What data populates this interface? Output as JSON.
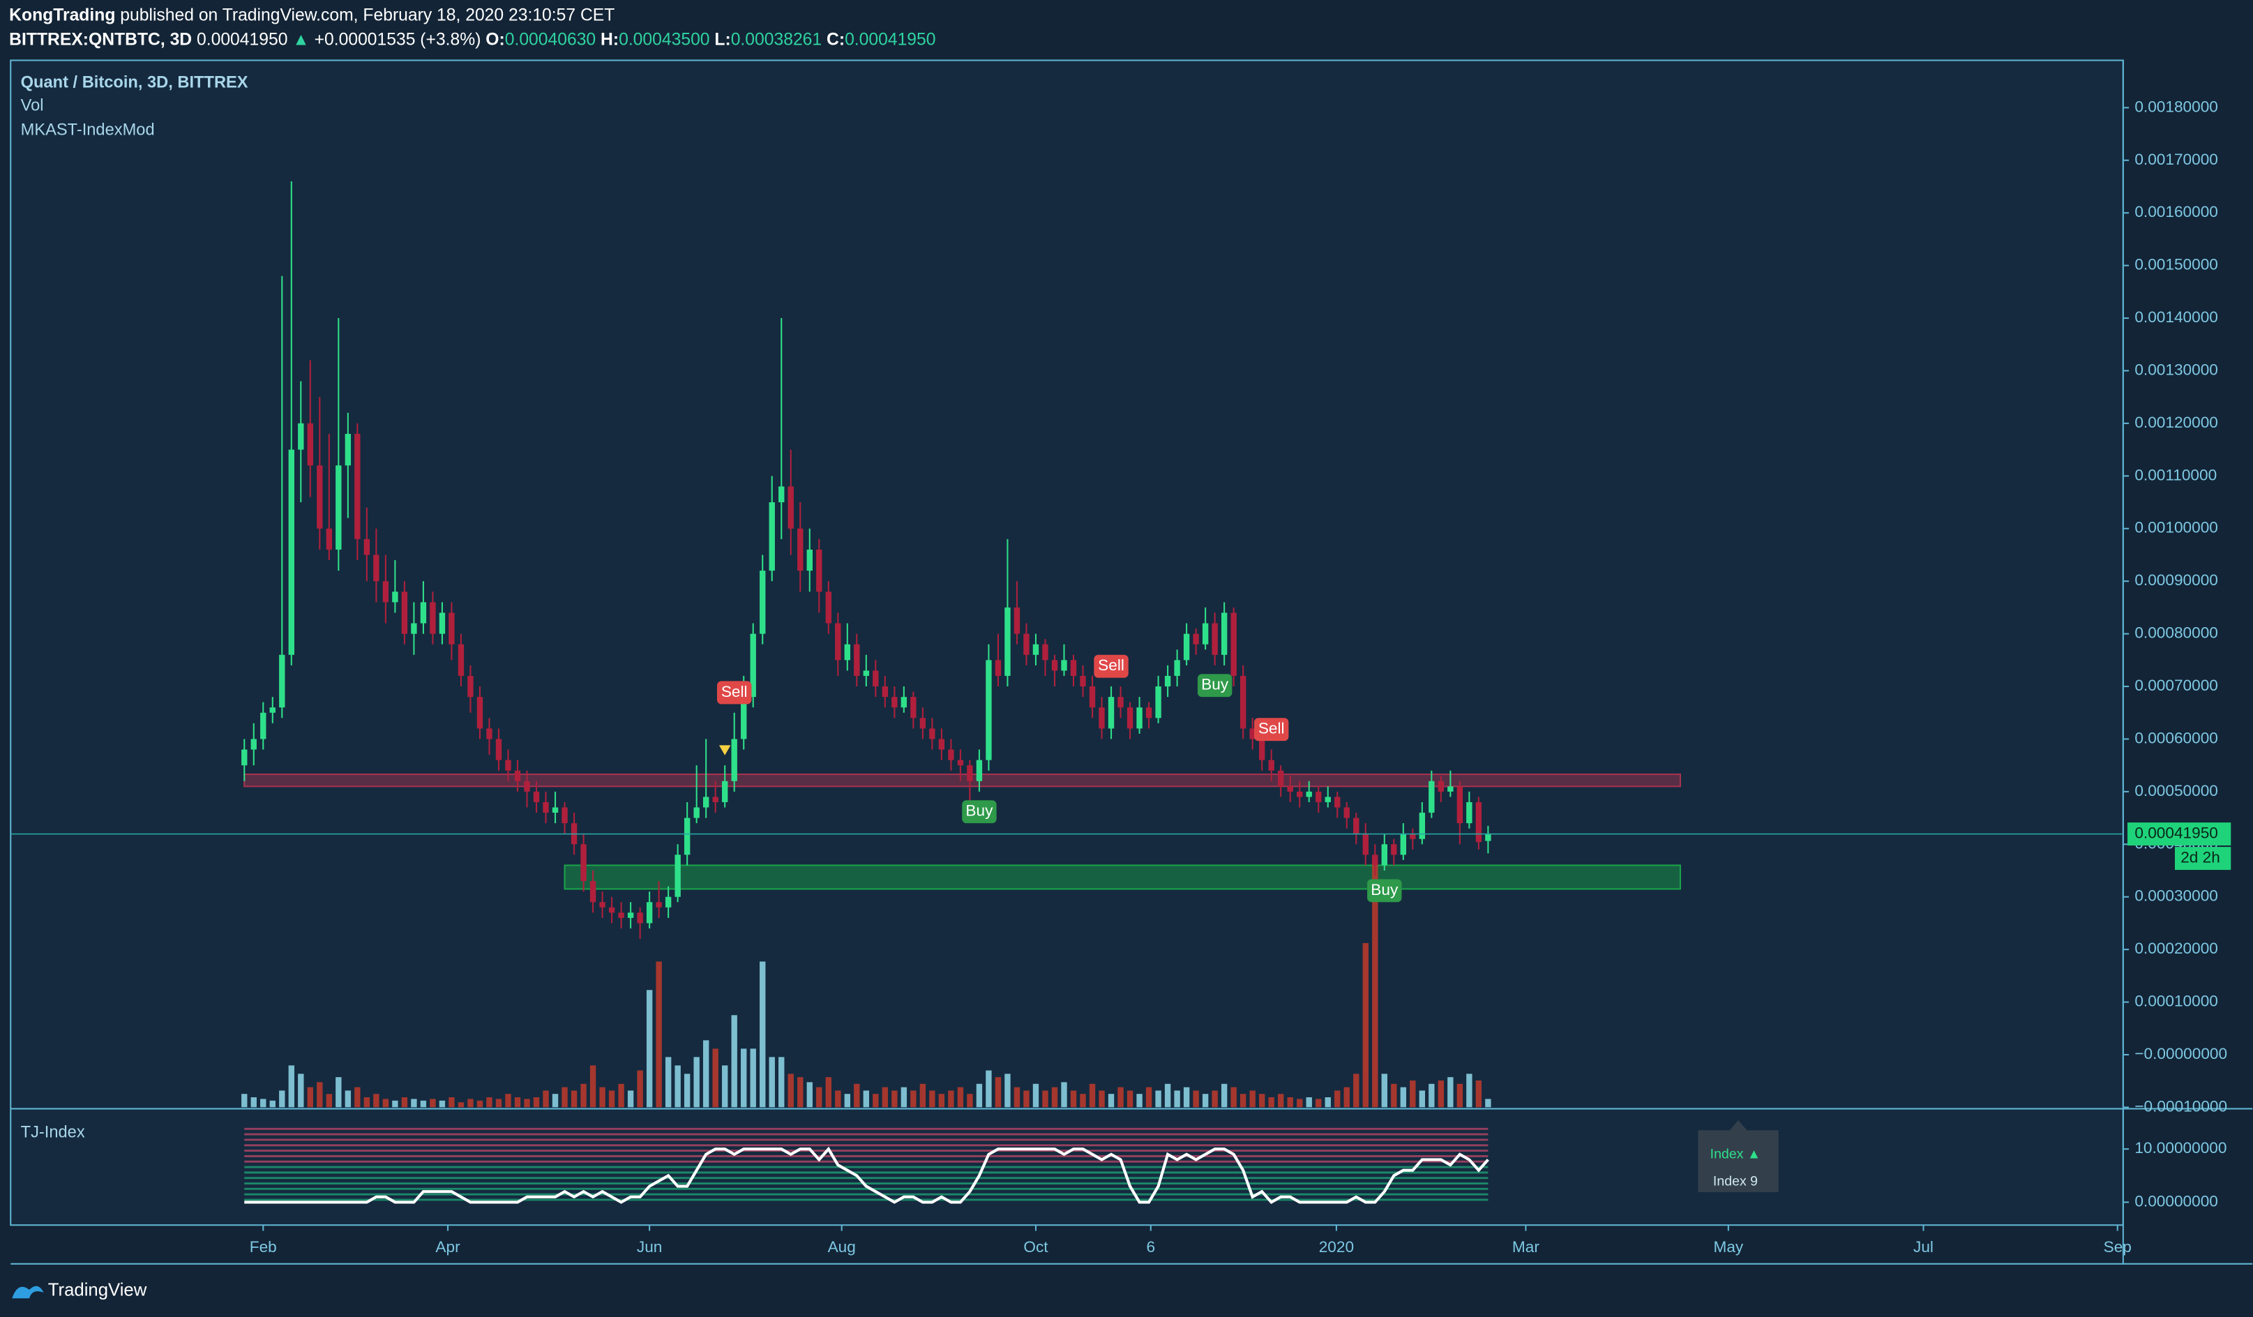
{
  "header": {
    "publisher": "KongTrading",
    "published": "published on TradingView.com, February 18, 2020 23:10:57 CET",
    "symbol": "BITTREX:QNTBTC, 3D",
    "price": "0.00041950",
    "arrow": "▲",
    "change": "+0.00001535 (+3.8%)",
    "o_label": "O:",
    "o": "0.00040630",
    "h_label": "H:",
    "h": "0.00043500",
    "l_label": "L:",
    "l": "0.00038261",
    "c_label": "C:",
    "c": "0.00041950"
  },
  "footer": {
    "brand": "TradingView"
  },
  "chart_data": {
    "type": "candlestick",
    "title": "Quant / Bitcoin, 3D, BITTREX",
    "legend": [
      "Vol",
      "MKAST-IndexMod"
    ],
    "up_color": "#2fe08a",
    "down_color": "#b0203c",
    "volume_up_color": "#8fd8ea",
    "volume_down_color": "#c0392b",
    "xlim": [
      -24.8,
      199.4
    ],
    "xticks": [
      {
        "value": 2,
        "label": "Feb"
      },
      {
        "value": 21.6,
        "label": "Apr"
      },
      {
        "value": 43,
        "label": "Jun"
      },
      {
        "value": 63.4,
        "label": "Aug"
      },
      {
        "value": 84,
        "label": "Oct"
      },
      {
        "value": 96.2,
        "label": "6"
      },
      {
        "value": 115.9,
        "label": "2020"
      },
      {
        "value": 136,
        "label": "Mar"
      },
      {
        "value": 157.5,
        "label": "May"
      },
      {
        "value": 178.2,
        "label": "Jul"
      },
      {
        "value": 198.8,
        "label": "Sep"
      }
    ],
    "ylim": [
      -0.0001,
      0.00189
    ],
    "yticks": [
      {
        "value": 0.0018,
        "label": "0.00180000"
      },
      {
        "value": 0.0017,
        "label": "0.00170000"
      },
      {
        "value": 0.0016,
        "label": "0.00160000"
      },
      {
        "value": 0.0015,
        "label": "0.00150000"
      },
      {
        "value": 0.0014,
        "label": "0.00140000"
      },
      {
        "value": 0.0013,
        "label": "0.00130000"
      },
      {
        "value": 0.0012,
        "label": "0.00120000"
      },
      {
        "value": 0.0011,
        "label": "0.00110000"
      },
      {
        "value": 0.001,
        "label": "0.00100000"
      },
      {
        "value": 0.0009,
        "label": "0.00090000"
      },
      {
        "value": 0.0008,
        "label": "0.00080000"
      },
      {
        "value": 0.0007,
        "label": "0.00070000"
      },
      {
        "value": 0.0006,
        "label": "0.00060000"
      },
      {
        "value": 0.0005,
        "label": "0.00050000"
      },
      {
        "value": 0.0004,
        "label": "0.00040000"
      },
      {
        "value": 0.0003,
        "label": "0.00030000"
      },
      {
        "value": 0.0002,
        "label": "0.00020000"
      },
      {
        "value": 0.0001,
        "label": "0.00010000"
      },
      {
        "value": 0,
        "label": "−0.00000000"
      },
      {
        "value": -0.0001,
        "label": "−0.00010000"
      }
    ],
    "ohlc": [
      [
        0.00055,
        0.0006,
        0.00052,
        0.00058
      ],
      [
        0.00058,
        0.00063,
        0.00055,
        0.0006
      ],
      [
        0.0006,
        0.00067,
        0.00058,
        0.00065
      ],
      [
        0.00065,
        0.00068,
        0.00063,
        0.00066
      ],
      [
        0.00066,
        0.00148,
        0.00064,
        0.00076
      ],
      [
        0.00076,
        0.00166,
        0.00074,
        0.00115
      ],
      [
        0.00115,
        0.00128,
        0.00105,
        0.0012
      ],
      [
        0.0012,
        0.00132,
        0.00106,
        0.00112
      ],
      [
        0.00112,
        0.00125,
        0.00096,
        0.001
      ],
      [
        0.001,
        0.00118,
        0.00094,
        0.00096
      ],
      [
        0.00096,
        0.0014,
        0.00092,
        0.00112
      ],
      [
        0.00112,
        0.00122,
        0.00102,
        0.00118
      ],
      [
        0.00118,
        0.0012,
        0.00094,
        0.00098
      ],
      [
        0.00098,
        0.00104,
        0.0009,
        0.00095
      ],
      [
        0.00095,
        0.001,
        0.00086,
        0.0009
      ],
      [
        0.0009,
        0.00095,
        0.00082,
        0.00086
      ],
      [
        0.00086,
        0.00094,
        0.00084,
        0.00088
      ],
      [
        0.00088,
        0.0009,
        0.00078,
        0.0008
      ],
      [
        0.0008,
        0.00086,
        0.00076,
        0.00082
      ],
      [
        0.00082,
        0.0009,
        0.0008,
        0.00086
      ],
      [
        0.00086,
        0.00088,
        0.00078,
        0.0008
      ],
      [
        0.0008,
        0.00086,
        0.00078,
        0.00084
      ],
      [
        0.00084,
        0.00086,
        0.00075,
        0.00078
      ],
      [
        0.00078,
        0.0008,
        0.0007,
        0.00072
      ],
      [
        0.00072,
        0.00074,
        0.00065,
        0.00068
      ],
      [
        0.00068,
        0.0007,
        0.0006,
        0.00062
      ],
      [
        0.00062,
        0.00064,
        0.00057,
        0.0006
      ],
      [
        0.0006,
        0.00062,
        0.00054,
        0.00056
      ],
      [
        0.00056,
        0.00058,
        0.00052,
        0.00054
      ],
      [
        0.00054,
        0.00056,
        0.0005,
        0.00052
      ],
      [
        0.00052,
        0.00054,
        0.00047,
        0.0005
      ],
      [
        0.0005,
        0.00052,
        0.00046,
        0.00048
      ],
      [
        0.00048,
        0.0005,
        0.00044,
        0.00046
      ],
      [
        0.00046,
        0.0005,
        0.00044,
        0.00047
      ],
      [
        0.00047,
        0.00048,
        0.00042,
        0.00044
      ],
      [
        0.00044,
        0.00046,
        0.00038,
        0.0004
      ],
      [
        0.0004,
        0.00042,
        0.00031,
        0.00033
      ],
      [
        0.00033,
        0.00035,
        0.00027,
        0.00029
      ],
      [
        0.00029,
        0.00031,
        0.00026,
        0.00028
      ],
      [
        0.00028,
        0.0003,
        0.00025,
        0.00027
      ],
      [
        0.00027,
        0.00029,
        0.00024,
        0.00026
      ],
      [
        0.00026,
        0.00029,
        0.00024,
        0.00027
      ],
      [
        0.00027,
        0.00028,
        0.00022,
        0.00025
      ],
      [
        0.00025,
        0.00031,
        0.00024,
        0.00029
      ],
      [
        0.00029,
        0.00033,
        0.00026,
        0.00028
      ],
      [
        0.00028,
        0.00032,
        0.00026,
        0.0003
      ],
      [
        0.0003,
        0.0004,
        0.00029,
        0.00038
      ],
      [
        0.00038,
        0.00048,
        0.00036,
        0.00045
      ],
      [
        0.00045,
        0.00055,
        0.00044,
        0.00047
      ],
      [
        0.00047,
        0.0006,
        0.00045,
        0.00049
      ],
      [
        0.00049,
        0.00052,
        0.00046,
        0.00048
      ],
      [
        0.00048,
        0.00055,
        0.00047,
        0.00052
      ],
      [
        0.00052,
        0.00065,
        0.0005,
        0.0006
      ],
      [
        0.0006,
        0.00072,
        0.00058,
        0.00068
      ],
      [
        0.00068,
        0.00082,
        0.00066,
        0.0008
      ],
      [
        0.0008,
        0.00095,
        0.00078,
        0.00092
      ],
      [
        0.00092,
        0.0011,
        0.0009,
        0.00105
      ],
      [
        0.00105,
        0.0014,
        0.00098,
        0.00108
      ],
      [
        0.00108,
        0.00115,
        0.00095,
        0.001
      ],
      [
        0.001,
        0.00105,
        0.00088,
        0.00092
      ],
      [
        0.00092,
        0.001,
        0.00088,
        0.00096
      ],
      [
        0.00096,
        0.00098,
        0.00084,
        0.00088
      ],
      [
        0.00088,
        0.0009,
        0.0008,
        0.00082
      ],
      [
        0.00082,
        0.00084,
        0.00072,
        0.00075
      ],
      [
        0.00075,
        0.00082,
        0.00073,
        0.00078
      ],
      [
        0.00078,
        0.0008,
        0.0007,
        0.00072
      ],
      [
        0.00072,
        0.00076,
        0.0007,
        0.00073
      ],
      [
        0.00073,
        0.00075,
        0.00068,
        0.0007
      ],
      [
        0.0007,
        0.00072,
        0.00066,
        0.00068
      ],
      [
        0.00068,
        0.0007,
        0.00064,
        0.00066
      ],
      [
        0.00066,
        0.0007,
        0.00065,
        0.00068
      ],
      [
        0.00068,
        0.00069,
        0.00062,
        0.00064
      ],
      [
        0.00064,
        0.00066,
        0.0006,
        0.00062
      ],
      [
        0.00062,
        0.00064,
        0.00058,
        0.0006
      ],
      [
        0.0006,
        0.00062,
        0.00056,
        0.00058
      ],
      [
        0.00058,
        0.0006,
        0.00054,
        0.00056
      ],
      [
        0.00056,
        0.00058,
        0.00052,
        0.00055
      ],
      [
        0.00055,
        0.00056,
        0.00048,
        0.00052
      ],
      [
        0.00052,
        0.00058,
        0.0005,
        0.00056
      ],
      [
        0.00056,
        0.00078,
        0.00054,
        0.00075
      ],
      [
        0.00075,
        0.0008,
        0.0007,
        0.00072
      ],
      [
        0.00072,
        0.00098,
        0.0007,
        0.00085
      ],
      [
        0.00085,
        0.0009,
        0.00078,
        0.0008
      ],
      [
        0.0008,
        0.00082,
        0.00074,
        0.00076
      ],
      [
        0.00076,
        0.0008,
        0.00074,
        0.00078
      ],
      [
        0.00078,
        0.00079,
        0.00072,
        0.00075
      ],
      [
        0.00075,
        0.00076,
        0.0007,
        0.00073
      ],
      [
        0.00073,
        0.00078,
        0.00072,
        0.00075
      ],
      [
        0.00075,
        0.00076,
        0.0007,
        0.00072
      ],
      [
        0.00072,
        0.00074,
        0.00068,
        0.0007
      ],
      [
        0.0007,
        0.00072,
        0.00064,
        0.00066
      ],
      [
        0.00066,
        0.00068,
        0.0006,
        0.00062
      ],
      [
        0.00062,
        0.0007,
        0.0006,
        0.00068
      ],
      [
        0.00068,
        0.0007,
        0.00064,
        0.00066
      ],
      [
        0.00066,
        0.00067,
        0.0006,
        0.00062
      ],
      [
        0.00062,
        0.00068,
        0.00061,
        0.00066
      ],
      [
        0.00066,
        0.00067,
        0.00062,
        0.00064
      ],
      [
        0.00064,
        0.00072,
        0.00063,
        0.0007
      ],
      [
        0.0007,
        0.00074,
        0.00068,
        0.00072
      ],
      [
        0.00072,
        0.00077,
        0.0007,
        0.00075
      ],
      [
        0.00075,
        0.00082,
        0.00074,
        0.0008
      ],
      [
        0.0008,
        0.00081,
        0.00076,
        0.00078
      ],
      [
        0.00078,
        0.00085,
        0.00077,
        0.00082
      ],
      [
        0.00082,
        0.00084,
        0.00074,
        0.00076
      ],
      [
        0.00076,
        0.00086,
        0.00074,
        0.00084
      ],
      [
        0.00084,
        0.00085,
        0.0007,
        0.00072
      ],
      [
        0.00072,
        0.00074,
        0.0006,
        0.00062
      ],
      [
        0.00062,
        0.00064,
        0.00058,
        0.0006
      ],
      [
        0.0006,
        0.00062,
        0.00054,
        0.00056
      ],
      [
        0.00056,
        0.00058,
        0.00052,
        0.00054
      ],
      [
        0.00054,
        0.00055,
        0.00049,
        0.00051
      ],
      [
        0.00051,
        0.00053,
        0.00048,
        0.0005
      ],
      [
        0.0005,
        0.00052,
        0.00047,
        0.00049
      ],
      [
        0.00049,
        0.00052,
        0.00048,
        0.0005
      ],
      [
        0.0005,
        0.00051,
        0.00046,
        0.00048
      ],
      [
        0.00048,
        0.00051,
        0.00047,
        0.00049
      ],
      [
        0.00049,
        0.0005,
        0.00045,
        0.00047
      ],
      [
        0.00047,
        0.00048,
        0.00043,
        0.00045
      ],
      [
        0.00045,
        0.00046,
        0.0004,
        0.00042
      ],
      [
        0.00042,
        0.00044,
        0.00036,
        0.00038
      ],
      [
        0.00038,
        0.0004,
        0.00034,
        0.00036
      ],
      [
        0.00036,
        0.00042,
        0.00035,
        0.0004
      ],
      [
        0.0004,
        0.00041,
        0.00036,
        0.00038
      ],
      [
        0.00038,
        0.00044,
        0.00037,
        0.00042
      ],
      [
        0.00042,
        0.00043,
        0.00039,
        0.00041
      ],
      [
        0.00041,
        0.00048,
        0.0004,
        0.00046
      ],
      [
        0.00046,
        0.00054,
        0.00045,
        0.00052
      ],
      [
        0.00052,
        0.00053,
        0.00048,
        0.0005
      ],
      [
        0.0005,
        0.00054,
        0.00049,
        0.00051
      ],
      [
        0.00051,
        0.00052,
        0.0004,
        0.00044
      ],
      [
        0.00044,
        0.0005,
        0.00043,
        0.00048
      ],
      [
        0.00048,
        0.00049,
        0.00039,
        0.00040415
      ],
      [
        0.0004063,
        0.000435,
        0.00038261,
        0.0004195
      ]
    ],
    "volume": [
      8,
      6,
      5,
      4,
      10,
      25,
      20,
      12,
      15,
      8,
      18,
      10,
      12,
      6,
      8,
      5,
      4,
      6,
      5,
      4,
      5,
      4,
      6,
      3,
      5,
      4,
      6,
      5,
      8,
      6,
      5,
      6,
      10,
      8,
      12,
      10,
      14,
      25,
      12,
      10,
      14,
      10,
      22,
      70,
      87,
      30,
      25,
      20,
      30,
      40,
      35,
      25,
      55,
      35,
      35,
      87,
      30,
      30,
      20,
      18,
      15,
      12,
      18,
      10,
      8,
      14,
      10,
      8,
      12,
      10,
      12,
      10,
      14,
      10,
      8,
      10,
      12,
      8,
      14,
      22,
      18,
      20,
      12,
      10,
      14,
      10,
      12,
      15,
      10,
      8,
      14,
      10,
      8,
      12,
      10,
      8,
      12,
      10,
      14,
      10,
      12,
      10,
      8,
      10,
      14,
      12,
      8,
      10,
      8,
      6,
      8,
      6,
      5,
      6,
      5,
      6,
      10,
      12,
      20,
      98,
      150,
      20,
      14,
      12,
      16,
      10,
      14,
      16,
      18,
      14,
      20,
      16,
      5
    ],
    "zones": [
      {
        "from": 0,
        "to": 152.4,
        "top": 0.000533,
        "bottom": 0.00051,
        "color": "#a8324f"
      },
      {
        "from": 34,
        "to": 152.4,
        "top": 0.00036,
        "bottom": 0.000315,
        "color": "#1aa34a"
      }
    ],
    "signals": [
      {
        "index": 52,
        "label": "Sell",
        "side": "above",
        "color": "#e04848"
      },
      {
        "index": 78,
        "label": "Buy",
        "side": "below",
        "color": "#2e9a4a"
      },
      {
        "index": 92,
        "label": "Sell",
        "side": "above",
        "color": "#e04848"
      },
      {
        "index": 103,
        "label": "Buy",
        "side": "below",
        "color": "#2e9a4a"
      },
      {
        "index": 109,
        "label": "Sell",
        "side": "above",
        "color": "#e04848"
      },
      {
        "index": 121,
        "label": "Buy",
        "side": "below",
        "color": "#2e9a4a"
      }
    ],
    "markers": [
      {
        "index": 51,
        "shape": "down",
        "color": "#f5d142"
      },
      {
        "index": 78,
        "shape": "up",
        "color": "#f5d142"
      }
    ],
    "last_price": {
      "value": 0.0004195,
      "label": "0.00041950",
      "countdown": "2d 2h",
      "color": "#1fd37a"
    },
    "index_pane": {
      "title": "TJ-Index",
      "ylim": [
        -4.3,
        17.3
      ],
      "yticks": [
        {
          "value": 10,
          "label": "10.00000000"
        },
        {
          "value": 0,
          "label": "0.00000000"
        }
      ],
      "color": "#ffffff",
      "values": [
        0,
        0,
        0,
        0,
        0,
        0,
        0,
        0,
        0,
        0,
        0,
        0,
        0,
        0,
        1,
        1,
        0,
        0,
        0,
        2,
        2,
        2,
        2,
        1,
        0,
        0,
        0,
        0,
        0,
        0,
        1,
        1,
        1,
        1,
        2,
        1,
        2,
        1,
        2,
        1,
        0,
        1,
        1,
        3,
        4,
        5,
        3,
        3,
        6,
        9,
        10,
        10,
        9,
        10,
        10,
        10,
        10,
        10,
        9,
        10,
        10,
        8,
        10,
        7,
        6,
        5,
        3,
        2,
        1,
        0,
        1,
        1,
        0,
        0,
        1,
        0,
        0,
        2,
        5,
        9,
        10,
        10,
        10,
        10,
        10,
        10,
        10,
        9,
        10,
        10,
        9,
        8,
        9,
        8,
        3,
        0,
        0,
        3,
        9,
        8,
        9,
        8,
        9,
        10,
        10,
        9,
        6,
        1,
        2,
        0,
        1,
        1,
        0,
        0,
        0,
        0,
        0,
        0,
        1,
        0,
        0,
        2,
        5,
        6,
        6,
        8,
        8,
        8,
        7,
        9,
        8,
        6,
        8
      ],
      "tooltip": [
        "Index ▲",
        "Index 9"
      ]
    }
  }
}
